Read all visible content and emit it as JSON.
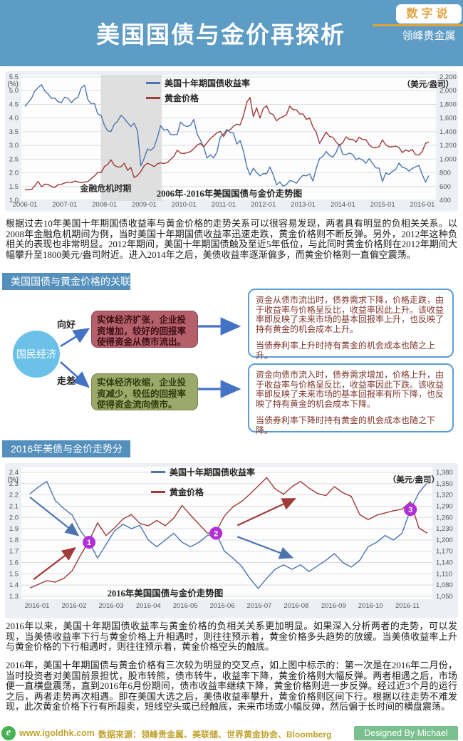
{
  "header": {
    "title": "美国国债与金价再探析",
    "badge": "数字说",
    "brand": "领峰贵金属"
  },
  "intro": "根据过去10年美国十年期国债收益率与黄金价格的走势关系可以很容易发现，两者具有明显的负相关关系。以2008年金融危机期间为例，当时美国十年期国债收益率迅速走跌，黄金价格则不断反弹。另外，2012年这种负相关的表现也非常明显。2012年期间，美国十年期国债触及至近5年低位，与此同时黄金价格则在2012年期间大幅攀升至1800美元/盎司附近。进入2014年之后，美债收益率逐渐偏多，而黄金价格则一直偏空震荡。",
  "section1": {
    "title": "美国国债与黄金价格的关联"
  },
  "section2": {
    "title": "2016年美债与金价走势分析"
  },
  "diagram": {
    "hub": "国民经济",
    "up_label": "向好",
    "down_label": "走差",
    "expand_box": "实体经济扩张，企业投资增加，较好的回报率使得资金从债市流出。",
    "contract_box": "实体经济收缩，企业投资减少，较低的回报率使得资金流向债市。",
    "outflow": {
      "main": "资金从债市流出时，债券需求下降，价格走跌，由于收益率与价格呈反比，收益率因此上升。该收益率即反映了未来市场的基本回报率上升，也反映了持有黄金的机会成本上升。",
      "tail": "当债券利率上升时持有黄金的机会成本也随之上升。"
    },
    "inflow": {
      "main": "资金向债市流入时，债券需求增加，价格上升，由于收益率与价格呈反比，收益率因此下跌。该收益率即反映了未来市场的基本回报率有所下降，也反映了持有黄金的机会成本下降。",
      "tail": "当债券利率下降时持有黄金的机会成本也随之下降。"
    }
  },
  "analysis1": "2016年以来，美国十年期国债收益率与黄金价格的负相关关系更加明显。如果深入分析两者的走势，可以发现，当美债收益率下行与黄金价格上升相遇时，则往往预示着，黄金价格多头趋势的放缓。当美债收益率上升与黄金价格的下行相遇时，则往往预示着，黄金价格空头的触底。",
  "analysis2": "2016年，美国十年期国债与黄金价格有三次较为明显的交叉点，如上图中标示的：第一次是在2016年二月份，当时投资者对美国前景担忧，股市转熊，债市转牛，收益率下降，黄金价格则大幅反弹。两者相遇之后，市场便一直横盘震荡，直到2016年6月份期间，债市收益率继续下降，黄金价格则进一步反弹。经过近3个月的运行之后，两者走势再次相遇。即在美国大选之后，美债收益率攀升，黄金价格则区间下行。根据以往走势不难发现，此次黄金价格下行有所超卖，短线空头或已经触底，未来市场或小幅反弹，然后偏于长时间的横盘震荡。",
  "footer": {
    "site": "www.igoldhk.com",
    "source": "数据来源：领峰贵金属、美联储、世界黄金协会、Bloomberg",
    "credit": "Designed By Michael Wang"
  },
  "colors": {
    "header_bg": "#5D9CC4",
    "section_bg": "#5590BD",
    "yield_line": "#4C74AE",
    "gold_line": "#A03B38",
    "marker_purple": "#B02FD6",
    "diagram_arrow": "#4472C4",
    "expand_box_bg": "#B4606B",
    "contract_box_bg": "#9CA96B",
    "hub_circle": "#6CC1E8",
    "footer_gold": "#C2A22E",
    "credit_bg": "#7ABF8E",
    "badge_text": "#E2A23C",
    "crisis_band": "#DFDFDF"
  },
  "chart_data": [
    {
      "type": "line",
      "caption": "2006年-2016年美国国债与金价走势图",
      "unit_left": "(%)",
      "unit_right": "（美元/盎司）",
      "y_left": {
        "min": 1.0,
        "max": 5.5,
        "step": 0.5,
        "format": "1dp"
      },
      "y_right": {
        "min": 400,
        "max": 2200,
        "step": 200,
        "format": "thousands"
      },
      "x_ticks": [
        {
          "label": "2006-01",
          "f": 0.0
        },
        {
          "label": "2007-01",
          "f": 0.0984
        },
        {
          "label": "2008-01",
          "f": 0.1968
        },
        {
          "label": "2009-01",
          "f": 0.2952
        },
        {
          "label": "2010-01",
          "f": 0.3937
        },
        {
          "label": "2011-01",
          "f": 0.4921
        },
        {
          "label": "2012-01",
          "f": 0.5905
        },
        {
          "label": "2013-01",
          "f": 0.6889
        },
        {
          "label": "2014-01",
          "f": 0.7873
        },
        {
          "label": "2015-01",
          "f": 0.8857
        },
        {
          "label": "2016-01",
          "f": 0.9841
        }
      ],
      "band": {
        "label": "金融危机时期",
        "f0": 0.188,
        "f1": 0.3386,
        "label_f": 0.2,
        "label_v": 1.33
      },
      "series": [
        {
          "name": "美国十年期国债收益率",
          "color": "#4C74AE",
          "axis": "left",
          "values": [
            4.42,
            4.57,
            4.72,
            4.99,
            5.11,
            5.22,
            4.99,
            4.88,
            4.72,
            4.73,
            4.6,
            4.56,
            4.76,
            4.72,
            4.56,
            4.69,
            4.75,
            5.1,
            5.2,
            4.67,
            4.52,
            4.53,
            4.15,
            4.1,
            3.74,
            3.53,
            3.51,
            3.77,
            3.88,
            4.1,
            3.99,
            3.83,
            3.69,
            3.81,
            3.53,
            2.25,
            2.52,
            2.87,
            2.82,
            2.93,
            3.29,
            3.72,
            3.56,
            3.59,
            3.4,
            3.39,
            3.4,
            3.85,
            3.73,
            3.69,
            3.73,
            3.95,
            3.42,
            3.2,
            2.94,
            2.54,
            2.66,
            2.54,
            2.76,
            3.3,
            3.42,
            3.58,
            3.47,
            3.45,
            3.05,
            3.18,
            2.8,
            2.23,
            1.92,
            2.17,
            2.01,
            1.89,
            1.97,
            1.97,
            2.21,
            1.93,
            1.56,
            1.66,
            1.51,
            1.57,
            1.72,
            1.69,
            1.62,
            1.78,
            1.91,
            1.89,
            1.96,
            1.7,
            2.16,
            2.52,
            2.6,
            2.78,
            2.64,
            2.57,
            2.75,
            3.04,
            2.67,
            2.66,
            2.72,
            2.67,
            2.48,
            2.53,
            2.47,
            2.35,
            2.52,
            2.35,
            2.18,
            2.17,
            1.68,
            2.0,
            1.94,
            2.05,
            2.12,
            2.36,
            2.2,
            2.17,
            2.06,
            2.16,
            2.22,
            2.27,
            1.95,
            1.66,
            1.9
          ]
        },
        {
          "name": "黄金价格",
          "color": "#A03B38",
          "axis": "right",
          "values": [
            550,
            556,
            557,
            611,
            676,
            596,
            634,
            632,
            599,
            585,
            627,
            632,
            651,
            665,
            655,
            680,
            667,
            655,
            665,
            672,
            715,
            755,
            806,
            803,
            889,
            922,
            990,
            910,
            885,
            888,
            940,
            835,
            880,
            730,
            760,
            820,
            900,
            940,
            920,
            890,
            930,
            945,
            935,
            950,
            995,
            1040,
            1130,
            1090,
            1080,
            1095,
            1110,
            1150,
            1205,
            1230,
            1180,
            1240,
            1300,
            1340,
            1385,
            1405,
            1330,
            1410,
            1430,
            1480,
            1510,
            1500,
            1630,
            1830,
            1900,
            1620,
            1750,
            1600,
            1740,
            1780,
            1670,
            1650,
            1560,
            1600,
            1620,
            1650,
            1775,
            1720,
            1720,
            1660,
            1660,
            1580,
            1600,
            1470,
            1390,
            1230,
            1310,
            1395,
            1330,
            1320,
            1250,
            1200,
            1240,
            1325,
            1290,
            1290,
            1250,
            1320,
            1285,
            1285,
            1210,
            1170,
            1165,
            1185,
            1280,
            1210,
            1180,
            1180,
            1190,
            1170,
            1095,
            1135,
            1115,
            1140,
            1065,
            1060,
            1110,
            1230,
            1250
          ]
        }
      ]
    },
    {
      "type": "line",
      "caption": "2016年美国国债与金价走势图",
      "unit_left": "(%)",
      "unit_right": "（美元/盎司）",
      "y_left": {
        "min": 1.3,
        "max": 2.4,
        "step": 0.1,
        "format": "1dp"
      },
      "y_right": {
        "min": 1050,
        "max": 1380,
        "step": 30,
        "format": "thousands"
      },
      "x_ticks": [
        {
          "label": "2016-01",
          "f": 0.018
        },
        {
          "label": "2016-02",
          "f": 0.111
        },
        {
          "label": "2016-03",
          "f": 0.204
        },
        {
          "label": "2016-04",
          "f": 0.298
        },
        {
          "label": "2016-05",
          "f": 0.391
        },
        {
          "label": "2016-06",
          "f": 0.484
        },
        {
          "label": "2016-07",
          "f": 0.577
        },
        {
          "label": "2016-08",
          "f": 0.67
        },
        {
          "label": "2016-09",
          "f": 0.764
        },
        {
          "label": "2016-10",
          "f": 0.857
        },
        {
          "label": "2016-11",
          "f": 0.95
        }
      ],
      "series": [
        {
          "name": "美国十年期国债收益率",
          "color": "#4C74AE",
          "axis": "left",
          "values": [
            2.21,
            2.27,
            2.32,
            2.15,
            2.08,
            2.02,
            1.88,
            1.78,
            1.64,
            1.76,
            1.88,
            1.94,
            1.9,
            1.93,
            1.8,
            1.74,
            1.8,
            1.86,
            1.78,
            1.74,
            1.78,
            1.84,
            1.86,
            1.7,
            1.64,
            1.57,
            1.46,
            1.37,
            1.46,
            1.54,
            1.58,
            1.54,
            1.58,
            1.52,
            1.57,
            1.62,
            1.68,
            1.6,
            1.56,
            1.62,
            1.74,
            1.78,
            1.84,
            1.8,
            1.86,
            2.07,
            2.22,
            2.31
          ]
        },
        {
          "name": "黄金价格",
          "color": "#A03B38",
          "axis": "right",
          "values": [
            1072,
            1082,
            1092,
            1088,
            1098,
            1118,
            1160,
            1198,
            1246,
            1212,
            1232,
            1256,
            1268,
            1244,
            1238,
            1252,
            1238,
            1258,
            1292,
            1266,
            1242,
            1218,
            1222,
            1264,
            1288,
            1302,
            1322,
            1344,
            1366,
            1336,
            1322,
            1342,
            1356,
            1338,
            1324,
            1318,
            1342,
            1326,
            1316,
            1268,
            1254,
            1266,
            1272,
            1278,
            1282,
            1302,
            1232,
            1218
          ]
        }
      ],
      "markers": [
        {
          "label": "1",
          "f": 0.1489,
          "v": 1.78
        },
        {
          "label": "2",
          "f": 0.4681,
          "v": 1.86
        },
        {
          "label": "3",
          "f": 0.9574,
          "v": 2.07
        }
      ],
      "arrows": [
        {
          "color": "#4C74AE",
          "f1": 0.0,
          "v1": 2.18,
          "f2": 0.118,
          "v2": 1.85
        },
        {
          "color": "#A03B38",
          "f1": 0.009,
          "v1": 1.45,
          "f2": 0.11,
          "v2": 1.72
        },
        {
          "color": "#A03B38",
          "f1": 0.522,
          "v1": 1.93,
          "f2": 0.663,
          "v2": 2.16
        },
        {
          "color": "#4C74AE",
          "f1": 0.522,
          "v1": 1.83,
          "f2": 0.656,
          "v2": 1.65
        }
      ]
    }
  ]
}
